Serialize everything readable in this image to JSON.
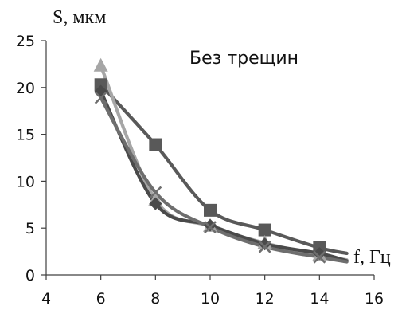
{
  "chart_data": {
    "type": "line",
    "title": "Без трещин",
    "xlabel": "f, Гц",
    "ylabel": "S, мкм",
    "xlim": [
      4,
      16
    ],
    "ylim": [
      0,
      25
    ],
    "xticks": [
      4,
      6,
      8,
      10,
      12,
      14,
      16
    ],
    "yticks": [
      0,
      5,
      10,
      15,
      20,
      25
    ],
    "grid": false,
    "series": [
      {
        "marker": "square",
        "color": "#595959",
        "x": [
          6,
          8,
          10,
          12,
          14,
          15
        ],
        "y": [
          20.3,
          13.9,
          6.9,
          4.8,
          2.9,
          2.3
        ],
        "show_marker": [
          true,
          true,
          true,
          true,
          true,
          false
        ]
      },
      {
        "marker": "triangle",
        "color": "#a6a6a6",
        "x": [
          6,
          8,
          10,
          12,
          14,
          15
        ],
        "y": [
          22.3,
          8.0,
          5.2,
          3.4,
          2.1,
          1.6
        ],
        "show_marker": [
          true,
          true,
          true,
          true,
          true,
          false
        ]
      },
      {
        "marker": "cross",
        "color": "#6e6e6e",
        "x": [
          6,
          8,
          10,
          12,
          14,
          15
        ],
        "y": [
          18.9,
          8.8,
          5.1,
          3.0,
          1.9,
          1.4
        ],
        "show_marker": [
          true,
          true,
          true,
          true,
          true,
          false
        ]
      },
      {
        "marker": "diamond",
        "color": "#4a4a4a",
        "x": [
          6,
          8,
          10,
          12,
          14,
          15
        ],
        "y": [
          19.6,
          7.6,
          5.3,
          3.3,
          2.3,
          1.5
        ],
        "show_marker": [
          true,
          true,
          true,
          true,
          true,
          false
        ]
      }
    ]
  }
}
